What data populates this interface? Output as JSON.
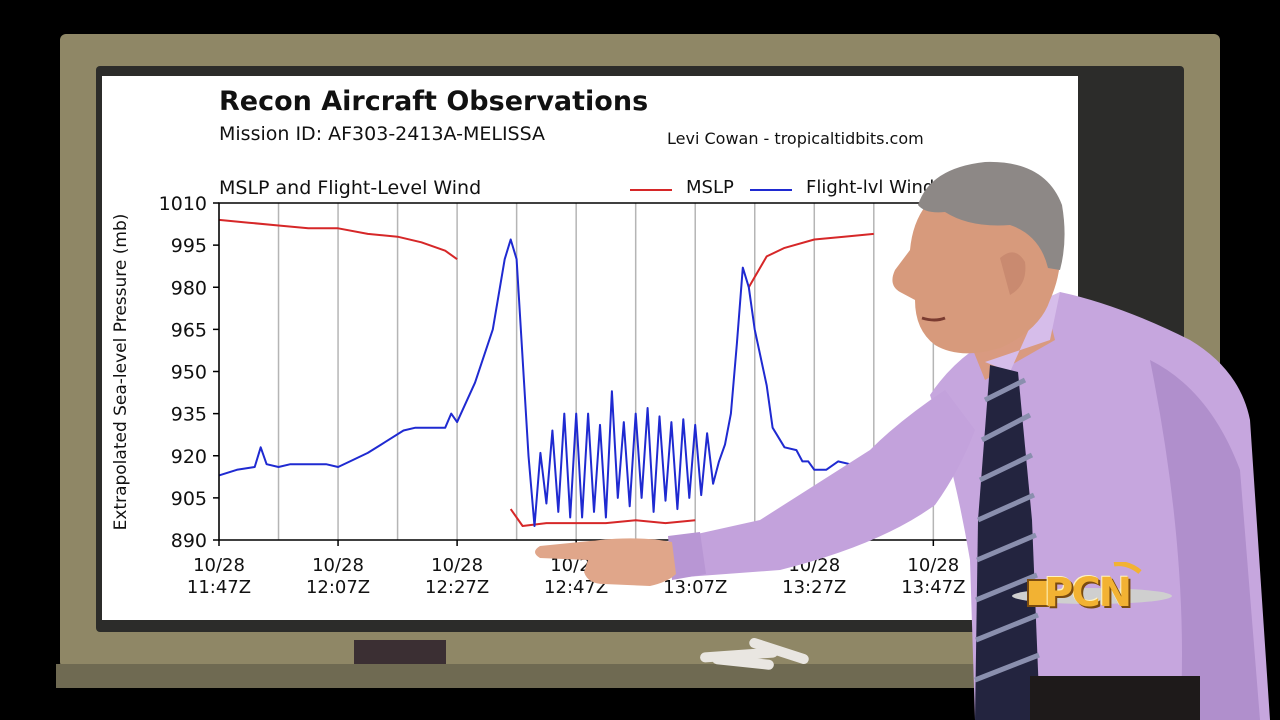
{
  "chart_data": {
    "type": "line",
    "title": "Recon Aircraft Observations",
    "subtitle": "Mission ID: AF303-2413A-MELISSA",
    "credit": "Levi Cowan - tropicaltidbits.com",
    "panel_title": "MSLP and Flight-Level Wind",
    "ylabel": "Extrapolated Sea-level Pressure (mb)",
    "ylim": [
      890,
      1010
    ],
    "yticks": [
      "1010",
      "995",
      "980",
      "965",
      "950",
      "935",
      "920",
      "905",
      "890"
    ],
    "x_unit": "minutes after 10/28 11:47Z",
    "xlim": [
      0,
      127
    ],
    "xticks": [
      {
        "date": "10/28",
        "time": "11:47Z",
        "value": 0
      },
      {
        "date": "10/28",
        "time": "12:07Z",
        "value": 20
      },
      {
        "date": "10/28",
        "time": "12:27Z",
        "value": 40
      },
      {
        "date": "10/28",
        "time": "12:47Z",
        "value": 60
      },
      {
        "date": "10/28",
        "time": "13:07Z",
        "value": 80
      },
      {
        "date": "10/28",
        "time": "13:27Z",
        "value": 100
      },
      {
        "date": "10/28",
        "time": "13:47Z",
        "value": 120
      }
    ],
    "gridlines_x": [
      0,
      10,
      20,
      30,
      40,
      50,
      60,
      70,
      80,
      90,
      100,
      110,
      120
    ],
    "grid": true,
    "series": [
      {
        "name": "MSLP",
        "color": "#d62728",
        "segments": [
          [
            [
              0,
              1004
            ],
            [
              5,
              1003
            ],
            [
              10,
              1002
            ],
            [
              15,
              1001
            ],
            [
              20,
              1001
            ],
            [
              25,
              999
            ],
            [
              30,
              998
            ],
            [
              34,
              996
            ],
            [
              38,
              993
            ],
            [
              40,
              990
            ]
          ],
          [
            [
              49,
              901
            ],
            [
              51,
              895
            ],
            [
              55,
              896
            ],
            [
              60,
              896
            ],
            [
              65,
              896
            ],
            [
              70,
              897
            ],
            [
              75,
              896
            ],
            [
              80,
              897
            ]
          ],
          [
            [
              89,
              980
            ],
            [
              92,
              991
            ],
            [
              95,
              994
            ],
            [
              100,
              997
            ],
            [
              105,
              998
            ],
            [
              110,
              999
            ]
          ]
        ]
      },
      {
        "name": "Flight-lvl Wind",
        "color": "#1f2ad1",
        "segments": [
          [
            [
              0,
              913
            ],
            [
              3,
              915
            ],
            [
              6,
              916
            ],
            [
              7,
              923
            ],
            [
              8,
              917
            ],
            [
              10,
              916
            ],
            [
              12,
              917
            ],
            [
              15,
              917
            ],
            [
              18,
              917
            ],
            [
              20,
              916
            ],
            [
              22,
              918
            ],
            [
              25,
              921
            ],
            [
              28,
              925
            ],
            [
              31,
              929
            ],
            [
              33,
              930
            ],
            [
              36,
              930
            ],
            [
              38,
              930
            ],
            [
              39,
              935
            ],
            [
              40,
              932
            ],
            [
              43,
              946
            ],
            [
              46,
              965
            ],
            [
              48,
              990
            ],
            [
              49,
              997
            ],
            [
              50,
              990
            ],
            [
              52,
              920
            ],
            [
              53,
              895
            ],
            [
              54,
              921
            ],
            [
              55,
              903
            ],
            [
              56,
              929
            ],
            [
              57,
              900
            ],
            [
              58,
              935
            ],
            [
              59,
              898
            ],
            [
              60,
              935
            ],
            [
              61,
              898
            ],
            [
              62,
              935
            ],
            [
              63,
              900
            ],
            [
              64,
              931
            ],
            [
              65,
              898
            ],
            [
              66,
              943
            ],
            [
              67,
              905
            ],
            [
              68,
              932
            ],
            [
              69,
              902
            ],
            [
              70,
              935
            ],
            [
              71,
              905
            ],
            [
              72,
              937
            ],
            [
              73,
              900
            ],
            [
              74,
              934
            ],
            [
              75,
              904
            ],
            [
              76,
              932
            ],
            [
              77,
              901
            ],
            [
              78,
              933
            ],
            [
              79,
              905
            ],
            [
              80,
              931
            ],
            [
              81,
              906
            ],
            [
              82,
              928
            ],
            [
              83,
              910
            ],
            [
              84,
              918
            ],
            [
              85,
              924
            ],
            [
              86,
              935
            ],
            [
              87,
              960
            ],
            [
              88,
              987
            ],
            [
              89,
              980
            ],
            [
              90,
              965
            ],
            [
              92,
              945
            ],
            [
              93,
              930
            ],
            [
              95,
              923
            ],
            [
              97,
              922
            ],
            [
              98,
              918
            ],
            [
              99,
              918
            ],
            [
              100,
              915
            ],
            [
              102,
              915
            ],
            [
              104,
              918
            ],
            [
              106,
              917
            ],
            [
              108,
              918
            ],
            [
              110,
              916
            ]
          ]
        ]
      }
    ]
  },
  "broadcast": {
    "logo_text": "PCN"
  }
}
